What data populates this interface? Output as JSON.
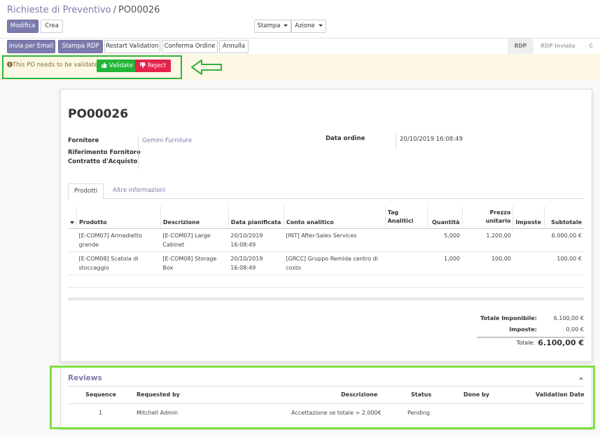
{
  "breadcrumb": {
    "parent": "Richieste di Preventivo",
    "separator": "/",
    "current": "PO00026"
  },
  "toolbar": {
    "edit_label": "Modifica",
    "create_label": "Crea",
    "print_label": "Stampa",
    "action_label": "Azione"
  },
  "actions": {
    "send_email": "Invia per Email",
    "print_rfq": "Stampa RDP",
    "restart_validation": "Restart Validation",
    "confirm_order": "Conferma Ordine",
    "cancel": "Annulla"
  },
  "statusbar": {
    "stages": [
      "RDP",
      "RDP Inviata",
      "C"
    ],
    "active_stage": "RDP"
  },
  "alert": {
    "message": "This PO needs to be validated.",
    "validate_label": "Validate",
    "reject_label": "Reject"
  },
  "form": {
    "name": "PO00026",
    "vendor_label": "Fornitore",
    "vendor_value": "Gemini Furniture",
    "vendor_ref_label": "Riferimento Fornitore",
    "contract_label": "Contratto d'Acquisto",
    "order_date_label": "Data ordine",
    "order_date_value": "20/10/2019 16:08:49"
  },
  "tabs": {
    "products": "Prodotti",
    "other_info": "Altre informazioni"
  },
  "lines": {
    "headers": {
      "product": "Prodotto",
      "description": "Descrizione",
      "date_planned": "Data pianificata",
      "analytic_account": "Conto analitico",
      "analytic_tags_1": "Tag",
      "analytic_tags_2": "Analitici",
      "quantity": "Quantità",
      "price_1": "Prezzo",
      "price_2": "unitario",
      "taxes": "Imposte",
      "subtotal": "Subtotale"
    },
    "rows": [
      {
        "product_1": "[E-COM07] Armadietto",
        "product_2": "grande",
        "desc_1": "[E-COM07] Large",
        "desc_2": "Cabinet",
        "date_1": "20/10/2019",
        "date_2": "16:08:49",
        "account_1": "[INT] After-Sales Services",
        "account_2": "",
        "qty": "5,000",
        "price": "1.200,00",
        "subtotal": "6.000,00 €"
      },
      {
        "product_1": "[E-COM08] Scatola di",
        "product_2": "stoccaggio",
        "desc_1": "[E-COM08] Storage",
        "desc_2": "Box",
        "date_1": "20/10/2019",
        "date_2": "16:08:49",
        "account_1": "[GRCC] Gruppo Remida centro di",
        "account_2": "costo",
        "qty": "1,000",
        "price": "100,00",
        "subtotal": "100,00 €"
      }
    ]
  },
  "totals": {
    "untaxed_label": "Totale Imponibile:",
    "untaxed_value": "6.100,00 €",
    "tax_label": "Imposte:",
    "tax_value": "0,00 €",
    "total_label": "Totale:",
    "total_value": "6.100,00 €"
  },
  "reviews": {
    "title": "Reviews",
    "headers": {
      "sequence": "Sequence",
      "requested_by": "Requested by",
      "description": "Descrizione",
      "status": "Status",
      "done_by": "Done by",
      "validation_date": "Validation Date"
    },
    "row": {
      "sequence": "1",
      "requested_by": "Mitchell Admin",
      "description": "Accettazione se totale > 2.000€",
      "status": "Pending",
      "done_by": "",
      "validation_date": ""
    }
  },
  "colors": {
    "primary": "#7c7bad",
    "validate": "#21b536",
    "reject": "#e4234a",
    "alert_bg": "#fcf8e3",
    "highlight_green": "#32b340",
    "highlight_lime": "#7de042"
  },
  "icons": {
    "alert": "info-circle-icon",
    "validate": "thumbs-up-icon",
    "reject": "thumbs-down-icon",
    "arrow": "arrow-left-outline-icon",
    "collapse": "caret-up-icon"
  }
}
